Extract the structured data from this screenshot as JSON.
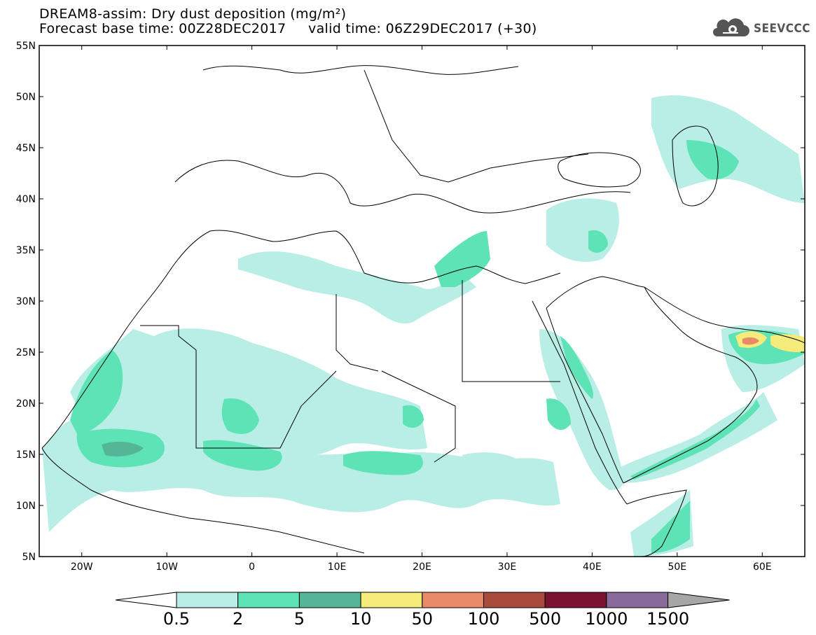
{
  "header": {
    "title_line1": "DREAM8-assim: Dry dust deposition (mg/m²)",
    "title_line2": "Forecast base time: 00Z28DEC2017     valid time: 06Z29DEC2017 (+30)",
    "logo_text": "SEEVCCC",
    "logo_icon": "cloud-gear-icon"
  },
  "map": {
    "lat_labels": [
      "55N",
      "50N",
      "45N",
      "40N",
      "35N",
      "30N",
      "25N",
      "20N",
      "15N",
      "10N",
      "5N"
    ],
    "lon_labels": [
      "20W",
      "10W",
      "0",
      "10E",
      "20E",
      "30E",
      "40E",
      "50E",
      "60E"
    ],
    "lon_range": [
      -25,
      65
    ],
    "lat_range": [
      5,
      55
    ]
  },
  "colorbar": {
    "labels": [
      "0.5",
      "2",
      "5",
      "10",
      "50",
      "100",
      "500",
      "1000",
      "1500"
    ],
    "colors": [
      "#b9eee6",
      "#5ee3b7",
      "#55b597",
      "#f5eb7a",
      "#e88a68",
      "#a94a3e",
      "#7c1130",
      "#8a6a9a",
      "#a6a6a6"
    ],
    "low_end_color": "#ffffff"
  }
}
